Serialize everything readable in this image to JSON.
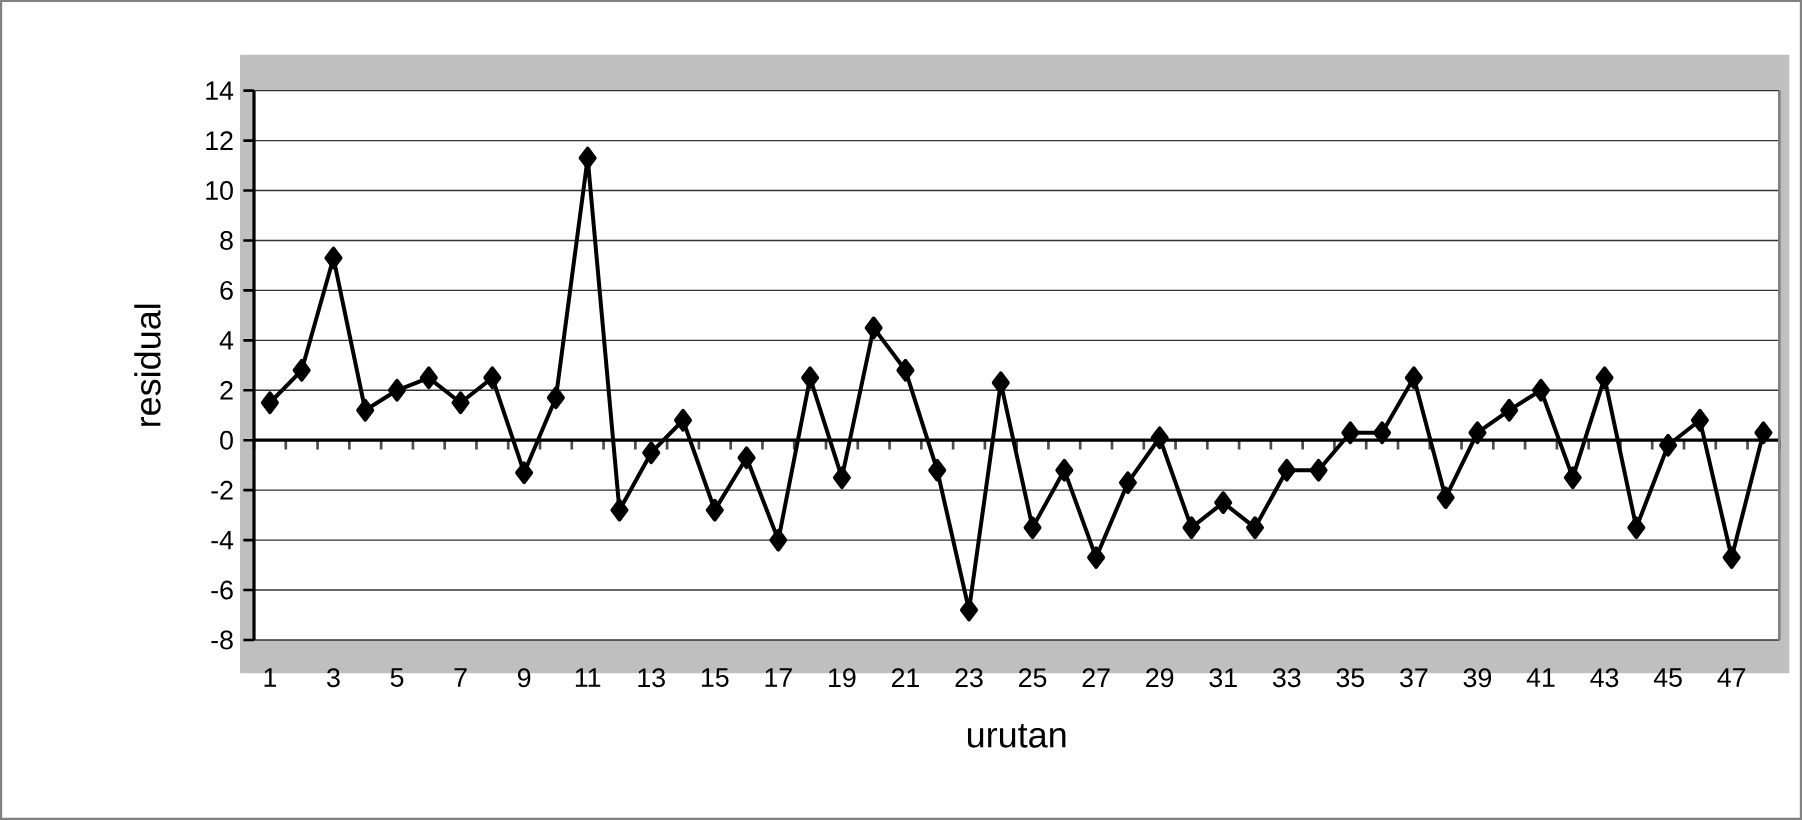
{
  "chart_data": {
    "type": "line",
    "xlabel": "urutan",
    "ylabel": "residual",
    "categories": [
      "1",
      null,
      "3",
      null,
      "5",
      null,
      "7",
      null,
      "9",
      null,
      "11",
      null,
      "13",
      null,
      "15",
      null,
      "17",
      null,
      "19",
      null,
      "21",
      null,
      "23",
      null,
      "25",
      null,
      "27",
      null,
      "29",
      null,
      "31",
      null,
      "33",
      null,
      "35",
      null,
      "37",
      null,
      "39",
      null,
      "41",
      null,
      "43",
      null,
      "45",
      null,
      "47",
      null
    ],
    "series": [
      {
        "color": "#000000",
        "values": [
          1.5,
          2.8,
          7.3,
          1.2,
          2.0,
          2.5,
          1.5,
          2.5,
          -1.3,
          1.7,
          11.3,
          -2.8,
          -0.5,
          0.8,
          -2.8,
          -0.7,
          -4.0,
          2.5,
          -1.5,
          4.5,
          2.8,
          -1.2,
          -6.8,
          2.3,
          -3.5,
          -1.2,
          -4.7,
          -1.7,
          0.1,
          -3.5,
          -2.5,
          -3.5,
          -1.2,
          -1.2,
          0.3,
          0.3,
          2.5,
          -2.3,
          0.3,
          1.2,
          2.0,
          -1.5,
          2.5,
          -3.5,
          -0.2,
          0.8,
          -4.7,
          0.3
        ]
      }
    ],
    "ylim": [
      -8,
      14
    ],
    "yticks": [
      -8,
      -6,
      -4,
      -2,
      0,
      2,
      4,
      6,
      8,
      10,
      12,
      14
    ],
    "grid": "y",
    "marker": "diamond",
    "line_style": "solid"
  }
}
